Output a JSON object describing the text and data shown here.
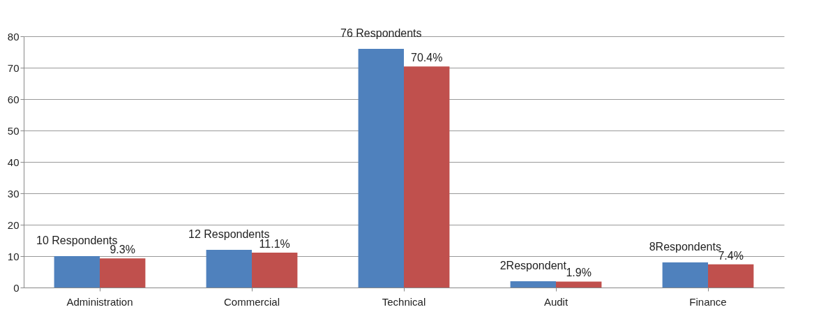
{
  "chart_data": {
    "type": "bar",
    "categories": [
      "Administration",
      "Commercial",
      "Technical",
      "Audit",
      "Finance"
    ],
    "series": [
      {
        "color": "#4f81bd",
        "values": [
          10,
          12,
          76,
          2,
          8
        ],
        "value_labels": [
          "10 Respondents",
          "12 Respondents",
          "76 Respondents",
          "2Respondent",
          "8Respondents"
        ]
      },
      {
        "color": "#c0504d",
        "values": [
          9.3,
          11.1,
          70.4,
          1.9,
          7.4
        ],
        "value_labels": [
          "9.3%",
          "11.1%",
          "70.4%",
          "1.9%",
          "7.4%"
        ]
      }
    ],
    "ylim": [
      0,
      80
    ],
    "yticks": [
      0,
      10,
      20,
      30,
      40,
      50,
      60,
      70,
      80
    ],
    "grid": "y",
    "legend": false
  }
}
